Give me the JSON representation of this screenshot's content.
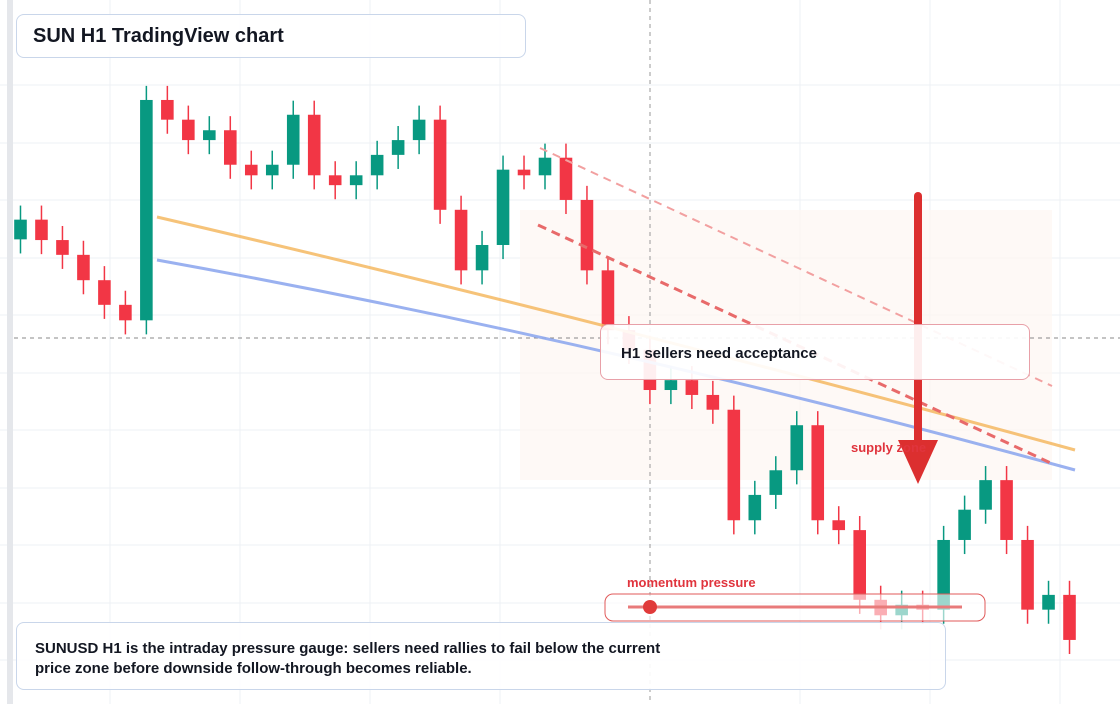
{
  "title": "SUN H1 TradingView chart",
  "annotations": {
    "acceptance": "H1 sellers need acceptance",
    "supply": "supply zone",
    "momentum": "momentum pressure",
    "note": "SUNUSD H1 is the intraday pressure gauge: sellers need rallies to fail below the current price zone before downside follow-through becomes reliable."
  },
  "chart_data": {
    "type": "candlestick",
    "ylim": [
      0,
      100
    ],
    "up_color": "#089981",
    "down_color": "#f23645",
    "open": [
      66.0,
      68.8,
      65.9,
      63.8,
      60.2,
      56.7,
      54.5,
      85.8,
      83.0,
      80.1,
      81.5,
      76.6,
      75.1,
      76.6,
      83.7,
      75.1,
      73.7,
      75.1,
      78.0,
      80.1,
      83.0,
      70.2,
      61.6,
      65.2,
      75.9,
      75.1,
      77.6,
      71.6,
      61.6,
      53.1,
      50.3,
      44.6,
      46.0,
      43.9,
      41.8,
      26.1,
      29.7,
      33.2,
      39.6,
      26.1,
      24.7,
      14.8,
      12.6,
      14.1,
      13.4,
      23.3,
      27.6,
      31.8,
      23.3,
      13.4,
      15.5
    ],
    "high": [
      70.8,
      70.8,
      67.9,
      65.8,
      62.2,
      58.7,
      87.8,
      87.8,
      85.0,
      83.5,
      83.5,
      78.6,
      78.6,
      85.7,
      85.7,
      77.1,
      77.1,
      80.0,
      82.1,
      85.0,
      85.0,
      72.2,
      67.2,
      77.9,
      77.9,
      79.6,
      79.6,
      73.6,
      63.6,
      55.1,
      52.3,
      48.0,
      48.0,
      45.9,
      43.8,
      31.7,
      35.2,
      41.6,
      41.6,
      28.1,
      26.7,
      16.8,
      16.1,
      16.1,
      25.3,
      29.6,
      33.8,
      33.8,
      25.3,
      17.5,
      17.5
    ],
    "low": [
      64.0,
      63.9,
      61.8,
      58.2,
      54.7,
      52.5,
      52.5,
      81.0,
      78.1,
      78.1,
      74.6,
      73.1,
      73.1,
      74.6,
      73.1,
      71.7,
      71.7,
      73.1,
      76.0,
      78.1,
      68.2,
      59.6,
      59.6,
      63.2,
      73.1,
      73.1,
      69.6,
      59.6,
      51.1,
      48.3,
      42.6,
      42.6,
      41.9,
      39.8,
      24.1,
      24.1,
      27.7,
      31.2,
      24.1,
      22.7,
      12.8,
      10.6,
      10.6,
      11.4,
      11.4,
      21.3,
      25.6,
      21.3,
      11.4,
      11.4,
      7.1
    ],
    "close": [
      68.8,
      65.9,
      63.8,
      60.2,
      56.7,
      54.5,
      85.8,
      83.0,
      80.1,
      81.5,
      76.6,
      75.1,
      76.6,
      83.7,
      75.1,
      73.7,
      75.1,
      78.0,
      80.1,
      83.0,
      70.2,
      61.6,
      65.2,
      75.9,
      75.1,
      77.6,
      71.6,
      61.6,
      53.1,
      50.3,
      44.6,
      46.0,
      43.9,
      41.8,
      26.1,
      29.7,
      33.2,
      39.6,
      26.1,
      24.7,
      14.8,
      12.6,
      14.1,
      13.4,
      23.3,
      27.6,
      31.8,
      23.3,
      13.4,
      15.5,
      9.1
    ]
  }
}
